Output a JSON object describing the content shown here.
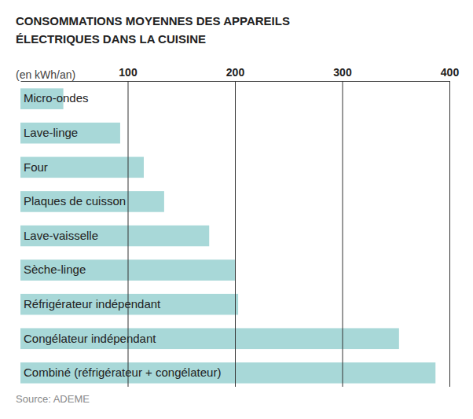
{
  "chart_data": {
    "type": "bar",
    "orientation": "horizontal",
    "title": "CONSOMMATIONS MOYENNES DES APPAREILS ÉLECTRIQUES DANS LA CUISINE",
    "xlabel": "(en kWh/an)",
    "source": "Source: ADEME",
    "categories": [
      "Micro-ondes",
      "Lave-linge",
      "Four",
      "Plaques de cuisson",
      "Lave-vaisselle",
      "Sèche-linge",
      "Réfrigérateur indépendant",
      "Congélateur indépendant",
      "Combiné (réfrigérateur + congélateur)"
    ],
    "values": [
      40,
      93,
      115,
      134,
      176,
      200,
      203,
      353,
      387
    ],
    "color": "#a8d8d8",
    "xlim": [
      0,
      400
    ],
    "xticks": [
      100,
      200,
      300,
      400
    ],
    "grid": true
  }
}
